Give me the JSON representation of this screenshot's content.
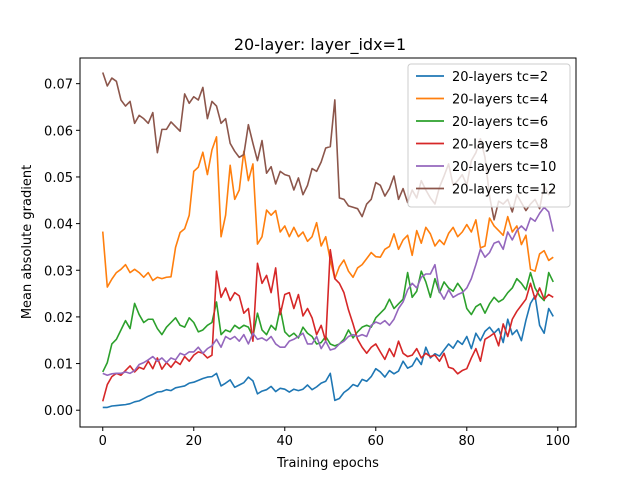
{
  "chart_data": {
    "type": "line",
    "title": "20-layer: layer_idx=1",
    "xlabel": "Training epochs",
    "ylabel": "Mean absolute gradient",
    "xlim": [
      -5,
      104
    ],
    "ylim": [
      -0.0036,
      0.0755
    ],
    "xticks": [
      0,
      20,
      40,
      60,
      80,
      100
    ],
    "yticks": [
      0.0,
      0.01,
      0.02,
      0.03,
      0.04,
      0.05,
      0.06,
      0.07
    ],
    "ytick_labels": [
      "0.00",
      "0.01",
      "0.02",
      "0.03",
      "0.04",
      "0.05",
      "0.06",
      "0.07"
    ],
    "grid": false,
    "legend_position": "top-right",
    "x": [
      0,
      1,
      2,
      3,
      4,
      5,
      6,
      7,
      8,
      9,
      10,
      11,
      12,
      13,
      14,
      15,
      16,
      17,
      18,
      19,
      20,
      21,
      22,
      23,
      24,
      25,
      26,
      27,
      28,
      29,
      30,
      31,
      32,
      33,
      34,
      35,
      36,
      37,
      38,
      39,
      40,
      41,
      42,
      43,
      44,
      45,
      46,
      47,
      48,
      49,
      50,
      51,
      52,
      53,
      54,
      55,
      56,
      57,
      58,
      59,
      60,
      61,
      62,
      63,
      64,
      65,
      66,
      67,
      68,
      69,
      70,
      71,
      72,
      73,
      74,
      75,
      76,
      77,
      78,
      79,
      80,
      81,
      82,
      83,
      84,
      85,
      86,
      87,
      88,
      89,
      90,
      91,
      92,
      93,
      94,
      95,
      96,
      97,
      98,
      99
    ],
    "series": [
      {
        "name": "20-layers tc=2",
        "color": "#1f77b4",
        "values": [
          0.0006,
          0.0006,
          0.0009,
          0.001,
          0.0011,
          0.0012,
          0.0014,
          0.0018,
          0.002,
          0.0025,
          0.003,
          0.0034,
          0.0039,
          0.004,
          0.0044,
          0.0042,
          0.0048,
          0.005,
          0.0052,
          0.0058,
          0.006,
          0.0064,
          0.0068,
          0.0071,
          0.0072,
          0.0079,
          0.0052,
          0.0058,
          0.0065,
          0.0049,
          0.0054,
          0.0059,
          0.0071,
          0.0063,
          0.0035,
          0.0041,
          0.0044,
          0.0051,
          0.004,
          0.0047,
          0.0045,
          0.0039,
          0.0045,
          0.0042,
          0.0045,
          0.0054,
          0.0044,
          0.005,
          0.0058,
          0.0062,
          0.0079,
          0.0021,
          0.0025,
          0.0038,
          0.0045,
          0.0055,
          0.0051,
          0.0066,
          0.0062,
          0.0072,
          0.0089,
          0.0082,
          0.0071,
          0.0085,
          0.0078,
          0.0084,
          0.0105,
          0.009,
          0.0095,
          0.0112,
          0.0098,
          0.0135,
          0.0112,
          0.0121,
          0.0116,
          0.0129,
          0.0142,
          0.0133,
          0.0149,
          0.0141,
          0.0158,
          0.0132,
          0.0165,
          0.0149,
          0.0169,
          0.0178,
          0.0165,
          0.0175,
          0.0145,
          0.0195,
          0.0162,
          0.0172,
          0.0149,
          0.0193,
          0.0229,
          0.0245,
          0.0182,
          0.0165,
          0.0218,
          0.0201
        ]
      },
      {
        "name": "20-layers tc=4",
        "color": "#ff7f0e",
        "values": [
          0.0383,
          0.0264,
          0.0281,
          0.0295,
          0.0302,
          0.0312,
          0.0295,
          0.0302,
          0.0295,
          0.0285,
          0.0295,
          0.0278,
          0.0285,
          0.0282,
          0.0285,
          0.0286,
          0.0349,
          0.0381,
          0.0389,
          0.0418,
          0.0512,
          0.0521,
          0.0553,
          0.0505,
          0.0558,
          0.0586,
          0.0372,
          0.0418,
          0.0525,
          0.0452,
          0.0472,
          0.0555,
          0.0492,
          0.0528,
          0.0356,
          0.0372,
          0.0429,
          0.0418,
          0.0428,
          0.0382,
          0.0395,
          0.0372,
          0.0392,
          0.0372,
          0.0382,
          0.0362,
          0.0372,
          0.0402,
          0.0352,
          0.0372,
          0.0322,
          0.0282,
          0.0308,
          0.0322,
          0.0298,
          0.0285,
          0.0305,
          0.0312,
          0.0325,
          0.0338,
          0.0329,
          0.0328,
          0.0345,
          0.0351,
          0.0378,
          0.0345,
          0.0365,
          0.0375,
          0.0332,
          0.0385,
          0.0358,
          0.0392,
          0.0378,
          0.0352,
          0.0365,
          0.0355,
          0.0379,
          0.0392,
          0.0372,
          0.0382,
          0.0398,
          0.0382,
          0.0408,
          0.0348,
          0.0352,
          0.0412,
          0.0395,
          0.0385,
          0.0375,
          0.0415,
          0.0382,
          0.0395,
          0.0355,
          0.0375,
          0.0302,
          0.0298,
          0.0335,
          0.0342,
          0.0321,
          0.0328
        ]
      },
      {
        "name": "20-layers tc=6",
        "color": "#2ca02c",
        "values": [
          0.0082,
          0.0102,
          0.0142,
          0.0152,
          0.0172,
          0.0192,
          0.0175,
          0.0229,
          0.0205,
          0.0188,
          0.0195,
          0.0195,
          0.0175,
          0.0162,
          0.0178,
          0.0188,
          0.0198,
          0.0182,
          0.0178,
          0.0198,
          0.0188,
          0.0168,
          0.0172,
          0.0182,
          0.0188,
          0.0232,
          0.0162,
          0.0172,
          0.0168,
          0.0182,
          0.0175,
          0.0182,
          0.0178,
          0.0158,
          0.0208,
          0.0172,
          0.0162,
          0.0182,
          0.0172,
          0.0218,
          0.0168,
          0.0158,
          0.0165,
          0.0155,
          0.0178,
          0.0165,
          0.0158,
          0.0142,
          0.0145,
          0.0158,
          0.0142,
          0.0138,
          0.0142,
          0.0152,
          0.0172,
          0.0155,
          0.0168,
          0.0178,
          0.0182,
          0.0178,
          0.0198,
          0.0208,
          0.0218,
          0.0238,
          0.0218,
          0.0228,
          0.0238,
          0.0295,
          0.0242,
          0.0255,
          0.0298,
          0.0275,
          0.0242,
          0.0282,
          0.0252,
          0.0275,
          0.0262,
          0.0255,
          0.0272,
          0.0258,
          0.0218,
          0.0205,
          0.0222,
          0.0228,
          0.0208,
          0.0228,
          0.0242,
          0.0232,
          0.0238,
          0.0252,
          0.0262,
          0.0282,
          0.0272,
          0.0258,
          0.0295,
          0.0262,
          0.0245,
          0.0235,
          0.0295,
          0.0275
        ]
      },
      {
        "name": "20-layers tc=8",
        "color": "#d62728",
        "values": [
          0.0019,
          0.0055,
          0.0072,
          0.0079,
          0.0075,
          0.0085,
          0.0095,
          0.0082,
          0.0092,
          0.0088,
          0.0105,
          0.0089,
          0.0112,
          0.0088,
          0.0102,
          0.0092,
          0.0105,
          0.0098,
          0.0115,
          0.0105,
          0.0118,
          0.0125,
          0.0122,
          0.0112,
          0.0118,
          0.0298,
          0.0242,
          0.0262,
          0.0235,
          0.0252,
          0.0245,
          0.0208,
          0.0218,
          0.0148,
          0.0315,
          0.0272,
          0.0289,
          0.0252,
          0.0305,
          0.0205,
          0.0248,
          0.0252,
          0.0218,
          0.0248,
          0.0202,
          0.0218,
          0.0198,
          0.0162,
          0.0182,
          0.0148,
          0.0344,
          0.0282,
          0.0272,
          0.0252,
          0.0215,
          0.0185,
          0.0152,
          0.0135,
          0.0122,
          0.0135,
          0.0142,
          0.0125,
          0.0109,
          0.0132,
          0.0115,
          0.0148,
          0.0122,
          0.0115,
          0.0118,
          0.0132,
          0.0112,
          0.0122,
          0.0115,
          0.0118,
          0.0105,
          0.0122,
          0.0092,
          0.0089,
          0.0078,
          0.0085,
          0.0089,
          0.0112,
          0.0132,
          0.0105,
          0.0152,
          0.0158,
          0.0165,
          0.0138,
          0.0185,
          0.0158,
          0.0195,
          0.0212,
          0.0225,
          0.0238,
          0.0272,
          0.0238,
          0.0262,
          0.0238,
          0.0248,
          0.0242
        ]
      },
      {
        "name": "20-layers tc=10",
        "color": "#9467bd",
        "values": [
          0.0079,
          0.0075,
          0.0078,
          0.0079,
          0.0079,
          0.0082,
          0.0079,
          0.0085,
          0.0098,
          0.0102,
          0.0108,
          0.0115,
          0.0105,
          0.0112,
          0.0102,
          0.0112,
          0.0108,
          0.0122,
          0.0118,
          0.0125,
          0.0125,
          0.0135,
          0.0122,
          0.0132,
          0.0138,
          0.0152,
          0.0135,
          0.0158,
          0.0152,
          0.0158,
          0.0148,
          0.0162,
          0.0142,
          0.0165,
          0.0152,
          0.0155,
          0.0149,
          0.0158,
          0.0142,
          0.0135,
          0.0135,
          0.0148,
          0.0152,
          0.0158,
          0.0165,
          0.0142,
          0.0142,
          0.0158,
          0.0132,
          0.0148,
          0.0129,
          0.0132,
          0.0142,
          0.0148,
          0.0158,
          0.0162,
          0.0158,
          0.0162,
          0.0158,
          0.0182,
          0.0189,
          0.0185,
          0.0192,
          0.0182,
          0.0195,
          0.0218,
          0.0232,
          0.0258,
          0.0272,
          0.0262,
          0.0285,
          0.0292,
          0.0292,
          0.0312,
          0.0255,
          0.0238,
          0.0258,
          0.0242,
          0.0248,
          0.0252,
          0.0262,
          0.0282,
          0.0312,
          0.0345,
          0.0328,
          0.0338,
          0.0358,
          0.0362,
          0.0345,
          0.0382,
          0.0365,
          0.0385,
          0.0395,
          0.0385,
          0.0412,
          0.0405,
          0.0422,
          0.0435,
          0.0425,
          0.0383
        ]
      },
      {
        "name": "20-layers tc=12",
        "color": "#8c564b",
        "values": [
          0.0724,
          0.0695,
          0.0712,
          0.0705,
          0.0665,
          0.0652,
          0.0662,
          0.0615,
          0.0632,
          0.0625,
          0.0615,
          0.0638,
          0.0552,
          0.0602,
          0.0602,
          0.0618,
          0.0608,
          0.0598,
          0.0678,
          0.0658,
          0.0672,
          0.0665,
          0.0692,
          0.0625,
          0.0662,
          0.0652,
          0.0615,
          0.0625,
          0.0572,
          0.0555,
          0.0542,
          0.0548,
          0.0612,
          0.0572,
          0.0535,
          0.0578,
          0.0508,
          0.0522,
          0.0485,
          0.0512,
          0.0505,
          0.0502,
          0.0472,
          0.0498,
          0.0462,
          0.0482,
          0.0518,
          0.0512,
          0.0532,
          0.0562,
          0.0565,
          0.0665,
          0.0455,
          0.0452,
          0.0438,
          0.0435,
          0.0432,
          0.0415,
          0.0442,
          0.0452,
          0.0488,
          0.0482,
          0.0459,
          0.0475,
          0.0502,
          0.0452,
          0.0475,
          0.0445,
          0.0472,
          0.0455,
          0.0492,
          0.0472,
          0.0455,
          0.0442,
          0.0478,
          0.0502,
          0.0528,
          0.0482,
          0.0492,
          0.0505,
          0.0482,
          0.0535,
          0.0552,
          0.0582,
          0.0542,
          0.0459,
          0.0408,
          0.0448,
          0.0442,
          0.0452,
          0.0425,
          0.0462,
          0.0445,
          0.0428,
          0.0442,
          0.0452,
          0.0432,
          0.0482,
          0.0462,
          0.0475
        ]
      }
    ]
  }
}
